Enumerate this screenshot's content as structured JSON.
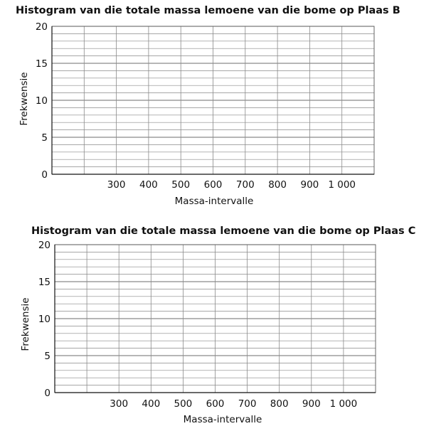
{
  "chart_data": [
    {
      "type": "bar",
      "title": "Histogram van die totale massa lemoene van die bome op Plaas B",
      "xlabel": "Massa-intervalle",
      "ylabel": "Frekwensie",
      "ylim": [
        0,
        20
      ],
      "y_ticks": [
        "0",
        "5",
        "10",
        "15",
        "20"
      ],
      "x_ticks": [
        "300",
        "400",
        "500",
        "600",
        "700",
        "800",
        "900",
        "1 000"
      ],
      "categories": [],
      "values": [],
      "grid": true
    },
    {
      "type": "bar",
      "title": "Histogram van die totale massa lemoene van die bome op Plaas C",
      "xlabel": "Massa-intervalle",
      "ylabel": "Frekwensie",
      "ylim": [
        0,
        20
      ],
      "y_ticks": [
        "0",
        "5",
        "10",
        "15",
        "20"
      ],
      "x_ticks": [
        "300",
        "400",
        "500",
        "600",
        "700",
        "800",
        "900",
        "1 000"
      ],
      "categories": [],
      "values": [],
      "grid": true
    }
  ]
}
